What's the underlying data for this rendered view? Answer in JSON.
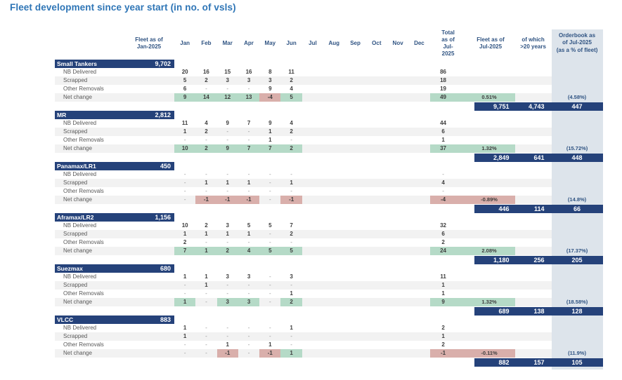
{
  "title": "Fleet development since year start (in no. of vsls)",
  "columns": {
    "fleet_jan": "Fleet as of\nJan-2025",
    "months": [
      "Jan",
      "Feb",
      "Mar",
      "Apr",
      "May",
      "Jun",
      "Jul",
      "Aug",
      "Sep",
      "Oct",
      "Nov",
      "Dec"
    ],
    "total_jul": "Total as of\nJul-2025",
    "fleet_jul": "Fleet as of\nJul-2025",
    "over20": "of which\n>20 years",
    "orderbook": "Orderbook as\nof Jul-2025\n(as a % of fleet)"
  },
  "sections": [
    {
      "name": "Small Tankers",
      "fleet_jan": "9,702",
      "rows": [
        {
          "label": "NB Delivered",
          "values": [
            "20",
            "16",
            "15",
            "16",
            "8",
            "11"
          ],
          "total": "86"
        },
        {
          "label": "Scrapped",
          "values": [
            "5",
            "2",
            "3",
            "3",
            "3",
            "2"
          ],
          "total": "18"
        },
        {
          "label": "Other Removals",
          "values": [
            "6",
            "-",
            "-",
            "-",
            "9",
            "4"
          ],
          "total": "19"
        },
        {
          "label": "Net change",
          "net": true,
          "values": [
            "9",
            "14",
            "12",
            "13",
            "-4",
            "5"
          ],
          "total": "49",
          "pct": "0.51%",
          "orderbook_pct": "(4.58%)"
        }
      ],
      "summary": {
        "fleet_jul": "9,751",
        "over20": "4,743",
        "orderbook": "447"
      }
    },
    {
      "name": "MR",
      "fleet_jan": "2,812",
      "rows": [
        {
          "label": "NB Delivered",
          "values": [
            "11",
            "4",
            "9",
            "7",
            "9",
            "4"
          ],
          "total": "44"
        },
        {
          "label": "Scrapped",
          "values": [
            "1",
            "2",
            "-",
            "-",
            "1",
            "2"
          ],
          "total": "6"
        },
        {
          "label": "Other Removals",
          "values": [
            "-",
            "-",
            "-",
            "-",
            "1",
            "-"
          ],
          "total": "1"
        },
        {
          "label": "Net change",
          "net": true,
          "values": [
            "10",
            "2",
            "9",
            "7",
            "7",
            "2"
          ],
          "total": "37",
          "pct": "1.32%",
          "orderbook_pct": "(15.72%)"
        }
      ],
      "summary": {
        "fleet_jul": "2,849",
        "over20": "641",
        "orderbook": "448"
      }
    },
    {
      "name": "Panamax/LR1",
      "fleet_jan": "450",
      "rows": [
        {
          "label": "NB Delivered",
          "values": [
            "-",
            "-",
            "-",
            "-",
            "-",
            "-"
          ],
          "total": "-"
        },
        {
          "label": "Scrapped",
          "values": [
            "-",
            "1",
            "1",
            "1",
            "-",
            "1"
          ],
          "total": "4"
        },
        {
          "label": "Other Removals",
          "values": [
            "-",
            "-",
            "-",
            "-",
            "-",
            "-"
          ],
          "total": "-"
        },
        {
          "label": "Net change",
          "net": true,
          "values": [
            "-",
            "-1",
            "-1",
            "-1",
            "-",
            "-1"
          ],
          "total": "-4",
          "pct": "-0.89%",
          "orderbook_pct": "(14.8%)"
        }
      ],
      "summary": {
        "fleet_jul": "446",
        "over20": "114",
        "orderbook": "66"
      }
    },
    {
      "name": "Aframax/LR2",
      "fleet_jan": "1,156",
      "rows": [
        {
          "label": "NB Delivered",
          "values": [
            "10",
            "2",
            "3",
            "5",
            "5",
            "7"
          ],
          "total": "32"
        },
        {
          "label": "Scrapped",
          "values": [
            "1",
            "1",
            "1",
            "1",
            "-",
            "2"
          ],
          "total": "6"
        },
        {
          "label": "Other Removals",
          "values": [
            "2",
            "-",
            "-",
            "-",
            "-",
            "-"
          ],
          "total": "2"
        },
        {
          "label": "Net change",
          "net": true,
          "values": [
            "7",
            "1",
            "2",
            "4",
            "5",
            "5"
          ],
          "total": "24",
          "pct": "2.08%",
          "orderbook_pct": "(17.37%)"
        }
      ],
      "summary": {
        "fleet_jul": "1,180",
        "over20": "256",
        "orderbook": "205"
      }
    },
    {
      "name": "Suezmax",
      "fleet_jan": "680",
      "rows": [
        {
          "label": "NB Delivered",
          "values": [
            "1",
            "1",
            "3",
            "3",
            "-",
            "3"
          ],
          "total": "11"
        },
        {
          "label": "Scrapped",
          "values": [
            "-",
            "1",
            "-",
            "-",
            "-",
            "-"
          ],
          "total": "1"
        },
        {
          "label": "Other Removals",
          "values": [
            "-",
            "-",
            "-",
            "-",
            "-",
            "1"
          ],
          "total": "1"
        },
        {
          "label": "Net change",
          "net": true,
          "values": [
            "1",
            "-",
            "3",
            "3",
            "-",
            "2"
          ],
          "total": "9",
          "pct": "1.32%",
          "orderbook_pct": "(18.58%)"
        }
      ],
      "summary": {
        "fleet_jul": "689",
        "over20": "138",
        "orderbook": "128"
      }
    },
    {
      "name": "VLCC",
      "fleet_jan": "883",
      "rows": [
        {
          "label": "NB Delivered",
          "values": [
            "1",
            "-",
            "-",
            "-",
            "-",
            "1"
          ],
          "total": "2"
        },
        {
          "label": "Scrapped",
          "values": [
            "1",
            "-",
            "-",
            "-",
            "-",
            "-"
          ],
          "total": "1"
        },
        {
          "label": "Other Removals",
          "values": [
            "-",
            "-",
            "1",
            "-",
            "1",
            "-"
          ],
          "total": "2"
        },
        {
          "label": "Net change",
          "net": true,
          "values": [
            "-",
            "-",
            "-1",
            "-",
            "-1",
            "1"
          ],
          "total": "-1",
          "pct": "-0.11%",
          "orderbook_pct": "(11.9%)"
        }
      ],
      "summary": {
        "fleet_jul": "882",
        "over20": "157",
        "orderbook": "105"
      }
    }
  ],
  "colors": {
    "navy": "#25427a",
    "title_blue": "#2e75b6",
    "header_blue": "#2f5382",
    "green_highlight": "#b5dac7",
    "red_highlight": "#d9afab",
    "stripe_gray": "#f2f2f2",
    "orderbook_bg": "#dde4eb"
  }
}
